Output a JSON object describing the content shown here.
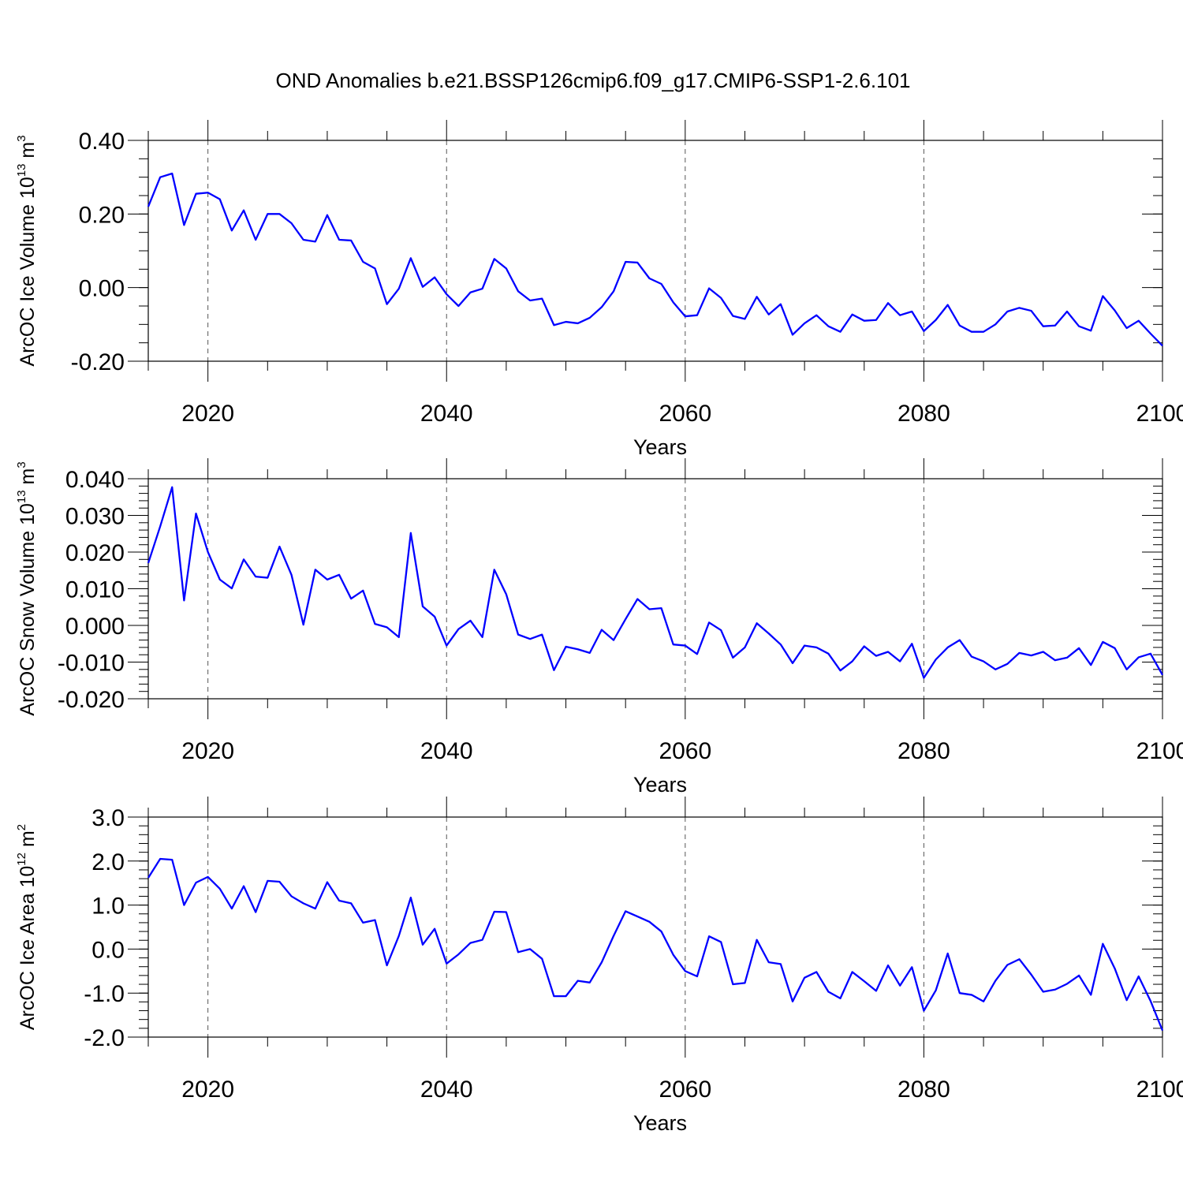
{
  "title": "OND Anomalies b.e21.BSSP126cmip6.f09_g17.CMIP6-SSP1-2.6.101",
  "chart_data": [
    {
      "type": "line",
      "ylabel": {
        "prefix": "ArcOC Ice Volume 10",
        "exp": "13",
        "unit": " m",
        "unit_exp": "3"
      },
      "xlabel": "Years",
      "xlim": [
        2015,
        2100
      ],
      "ylim": [
        -0.2,
        0.4
      ],
      "yticks": [
        -0.2,
        0.0,
        0.2,
        0.4
      ],
      "ytick_labels": [
        "-0.20",
        "0.00",
        "0.20",
        "0.40"
      ],
      "yminor_step": 0.05,
      "xticks": [
        2020,
        2040,
        2060,
        2080,
        2100
      ],
      "xtick_labels": [
        "2020",
        "2040",
        "2060",
        "2080",
        "2100"
      ],
      "grid": "vertical dashed at major x ticks",
      "line_color": "#0000ff",
      "series": [
        {
          "x_start": 2015,
          "values": [
            0.22,
            0.3,
            0.31,
            0.17,
            0.255,
            0.258,
            0.24,
            0.155,
            0.21,
            0.13,
            0.2,
            0.2,
            0.175,
            0.13,
            0.125,
            0.197,
            0.13,
            0.128,
            0.07,
            0.052,
            -0.045,
            -0.003,
            0.08,
            0.002,
            0.028,
            -0.018,
            -0.05,
            -0.013,
            -0.003,
            0.078,
            0.052,
            -0.01,
            -0.035,
            -0.03,
            -0.102,
            -0.093,
            -0.097,
            -0.082,
            -0.053,
            -0.01,
            0.07,
            0.068,
            0.025,
            0.01,
            -0.04,
            -0.078,
            -0.075,
            -0.002,
            -0.028,
            -0.077,
            -0.085,
            -0.025,
            -0.073,
            -0.045,
            -0.128,
            -0.097,
            -0.075,
            -0.105,
            -0.12,
            -0.073,
            -0.09,
            -0.088,
            -0.042,
            -0.075,
            -0.065,
            -0.118,
            -0.088,
            -0.047,
            -0.103,
            -0.12,
            -0.12,
            -0.1,
            -0.065,
            -0.055,
            -0.063,
            -0.105,
            -0.103,
            -0.065,
            -0.105,
            -0.117,
            -0.023,
            -0.062,
            -0.11,
            -0.09,
            -0.125,
            -0.158
          ]
        }
      ]
    },
    {
      "type": "line",
      "ylabel": {
        "prefix": "ArcOC Snow Volume 10",
        "exp": "13",
        "unit": " m",
        "unit_exp": "3"
      },
      "xlabel": "Years",
      "xlim": [
        2015,
        2100
      ],
      "ylim": [
        -0.02,
        0.04
      ],
      "yticks": [
        -0.02,
        -0.01,
        0.0,
        0.01,
        0.02,
        0.03,
        0.04
      ],
      "ytick_labels": [
        "-0.020",
        "-0.010",
        "0.000",
        "0.010",
        "0.020",
        "0.030",
        "0.040"
      ],
      "yminor_step": 0.002,
      "xticks": [
        2020,
        2040,
        2060,
        2080,
        2100
      ],
      "xtick_labels": [
        "2020",
        "2040",
        "2060",
        "2080",
        "2100"
      ],
      "grid": "vertical dashed at major x ticks",
      "line_color": "#0000ff",
      "series": [
        {
          "x_start": 2015,
          "values": [
            0.017,
            0.027,
            0.0377,
            0.0068,
            0.0305,
            0.02,
            0.0125,
            0.0101,
            0.018,
            0.0133,
            0.013,
            0.0215,
            0.0138,
            0.0002,
            0.0152,
            0.0125,
            0.0138,
            0.0073,
            0.0095,
            0.0004,
            -0.0005,
            -0.0032,
            0.0252,
            0.0052,
            0.0024,
            -0.0055,
            -0.001,
            0.0013,
            -0.0032,
            0.0152,
            0.0085,
            -0.0025,
            -0.0037,
            -0.0025,
            -0.0122,
            -0.0058,
            -0.0065,
            -0.0075,
            -0.0012,
            -0.004,
            0.0017,
            0.0072,
            0.0044,
            0.0047,
            -0.0052,
            -0.0055,
            -0.0078,
            0.0008,
            -0.0013,
            -0.0088,
            -0.006,
            0.0006,
            -0.0022,
            -0.0052,
            -0.0103,
            -0.0055,
            -0.006,
            -0.0077,
            -0.0123,
            -0.0098,
            -0.0057,
            -0.0083,
            -0.0072,
            -0.0098,
            -0.005,
            -0.0143,
            -0.0093,
            -0.006,
            -0.004,
            -0.0085,
            -0.0098,
            -0.012,
            -0.0105,
            -0.0075,
            -0.0082,
            -0.0072,
            -0.0095,
            -0.0088,
            -0.0062,
            -0.0108,
            -0.0045,
            -0.0062,
            -0.012,
            -0.0087,
            -0.0077,
            -0.0135
          ]
        }
      ]
    },
    {
      "type": "line",
      "ylabel": {
        "prefix": "ArcOC Ice Area 10",
        "exp": "12",
        "unit": " m",
        "unit_exp": "2"
      },
      "xlabel": "Years",
      "xlim": [
        2015,
        2100
      ],
      "ylim": [
        -2.0,
        3.0
      ],
      "yticks": [
        -2.0,
        -1.0,
        0.0,
        1.0,
        2.0,
        3.0
      ],
      "ytick_labels": [
        "-2.0",
        "-1.0",
        "0.0",
        "1.0",
        "2.0",
        "3.0"
      ],
      "yminor_step": 0.2,
      "xticks": [
        2020,
        2040,
        2060,
        2080,
        2100
      ],
      "xtick_labels": [
        "2020",
        "2040",
        "2060",
        "2080",
        "2100"
      ],
      "grid": "vertical dashed at major x ticks",
      "line_color": "#0000ff",
      "series": [
        {
          "x_start": 2015,
          "values": [
            1.62,
            2.05,
            2.03,
            1.0,
            1.51,
            1.64,
            1.37,
            0.92,
            1.43,
            0.84,
            1.55,
            1.53,
            1.2,
            1.04,
            0.92,
            1.52,
            1.1,
            1.04,
            0.6,
            0.66,
            -0.37,
            0.3,
            1.17,
            0.1,
            0.46,
            -0.33,
            -0.12,
            0.14,
            0.21,
            0.85,
            0.84,
            -0.07,
            0.0,
            -0.22,
            -1.07,
            -1.07,
            -0.72,
            -0.76,
            -0.3,
            0.3,
            0.86,
            0.74,
            0.62,
            0.4,
            -0.13,
            -0.5,
            -0.62,
            0.29,
            0.16,
            -0.8,
            -0.77,
            0.21,
            -0.3,
            -0.34,
            -1.19,
            -0.65,
            -0.52,
            -0.97,
            -1.12,
            -0.52,
            -0.73,
            -0.95,
            -0.37,
            -0.83,
            -0.41,
            -1.4,
            -0.94,
            -0.1,
            -1.0,
            -1.04,
            -1.19,
            -0.72,
            -0.36,
            -0.23,
            -0.58,
            -0.97,
            -0.92,
            -0.79,
            -0.6,
            -1.04,
            0.12,
            -0.44,
            -1.16,
            -0.62,
            -1.18,
            -1.85
          ]
        }
      ]
    }
  ]
}
